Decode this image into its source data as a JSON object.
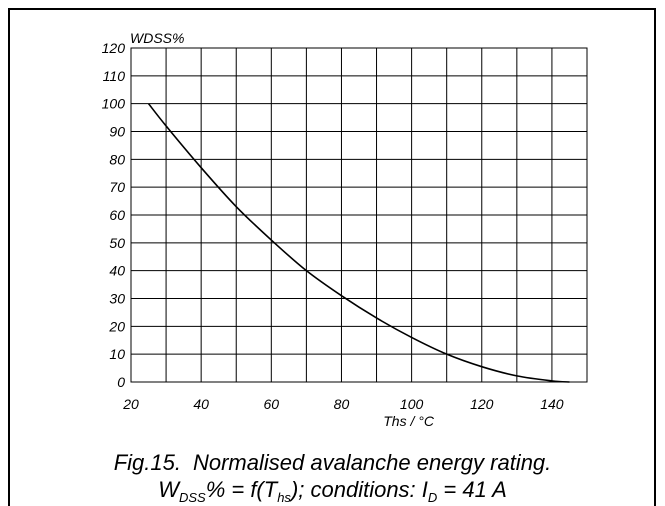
{
  "chart_data": {
    "type": "line",
    "ylabel": "WDSS%",
    "xlabel": "Ths / °C",
    "xlim": [
      20,
      150
    ],
    "ylim": [
      0,
      120
    ],
    "x_ticks": [
      20,
      40,
      60,
      80,
      100,
      120,
      140
    ],
    "y_ticks": [
      0,
      10,
      20,
      30,
      40,
      50,
      60,
      70,
      80,
      90,
      100,
      110,
      120
    ],
    "grid": true,
    "series": [
      {
        "x": [
          25,
          30,
          40,
          50,
          60,
          70,
          80,
          90,
          100,
          110,
          120,
          130,
          140,
          145
        ],
        "y": [
          100,
          92,
          77,
          63,
          51,
          40,
          31,
          23,
          16,
          10,
          5.5,
          2.2,
          0.4,
          0
        ]
      }
    ]
  },
  "caption": {
    "fig_label": "Fig.15.",
    "title": "Normalised avalanche energy rating.",
    "formula_w": "W",
    "formula_w_sub": "DSS",
    "formula_mid": "% = f(T",
    "formula_t_sub": "hs",
    "formula_cond": "); conditions: I",
    "formula_i_sub": "D",
    "formula_end": " = 41 A"
  }
}
